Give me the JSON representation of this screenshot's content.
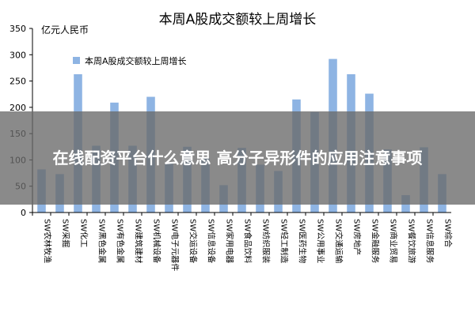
{
  "chart_data": {
    "type": "bar",
    "title": "本周A股成交额较上周增长",
    "ylabel": "亿元人民币",
    "xlabel": "",
    "ylim": [
      0,
      350
    ],
    "yticks": [
      0,
      50,
      100,
      150,
      200,
      250,
      300,
      350
    ],
    "grid": false,
    "legend_position": "top-left",
    "categories": [
      "SW农林牧渔",
      "SW采掘",
      "SW化工",
      "SW黑色金属",
      "SW有色金属",
      "SW建筑建材",
      "SW机械设备",
      "SW电子元器件",
      "SW交运设备",
      "SW信息设备",
      "SW家用电器",
      "SW食品饮料",
      "SW纺织服装",
      "SW轻工制造",
      "SW医药生物",
      "SW公用事业",
      "SW交通运输",
      "SW房地产",
      "SW金融服务",
      "SW商业贸易",
      "SW餐饮旅游",
      "SW信息服务",
      "SW综合"
    ],
    "series": [
      {
        "name": "本周A股成交额较上周增长",
        "color": "#8eb4e3",
        "values": [
          82,
          73,
          263,
          127,
          209,
          127,
          220,
          95,
          125,
          103,
          52,
          123,
          91,
          79,
          215,
          191,
          292,
          263,
          226,
          120,
          33,
          124,
          73
        ]
      }
    ]
  },
  "overlay": {
    "text": "在线配资平台什么意思 高分子异形件的应用注意事项"
  }
}
